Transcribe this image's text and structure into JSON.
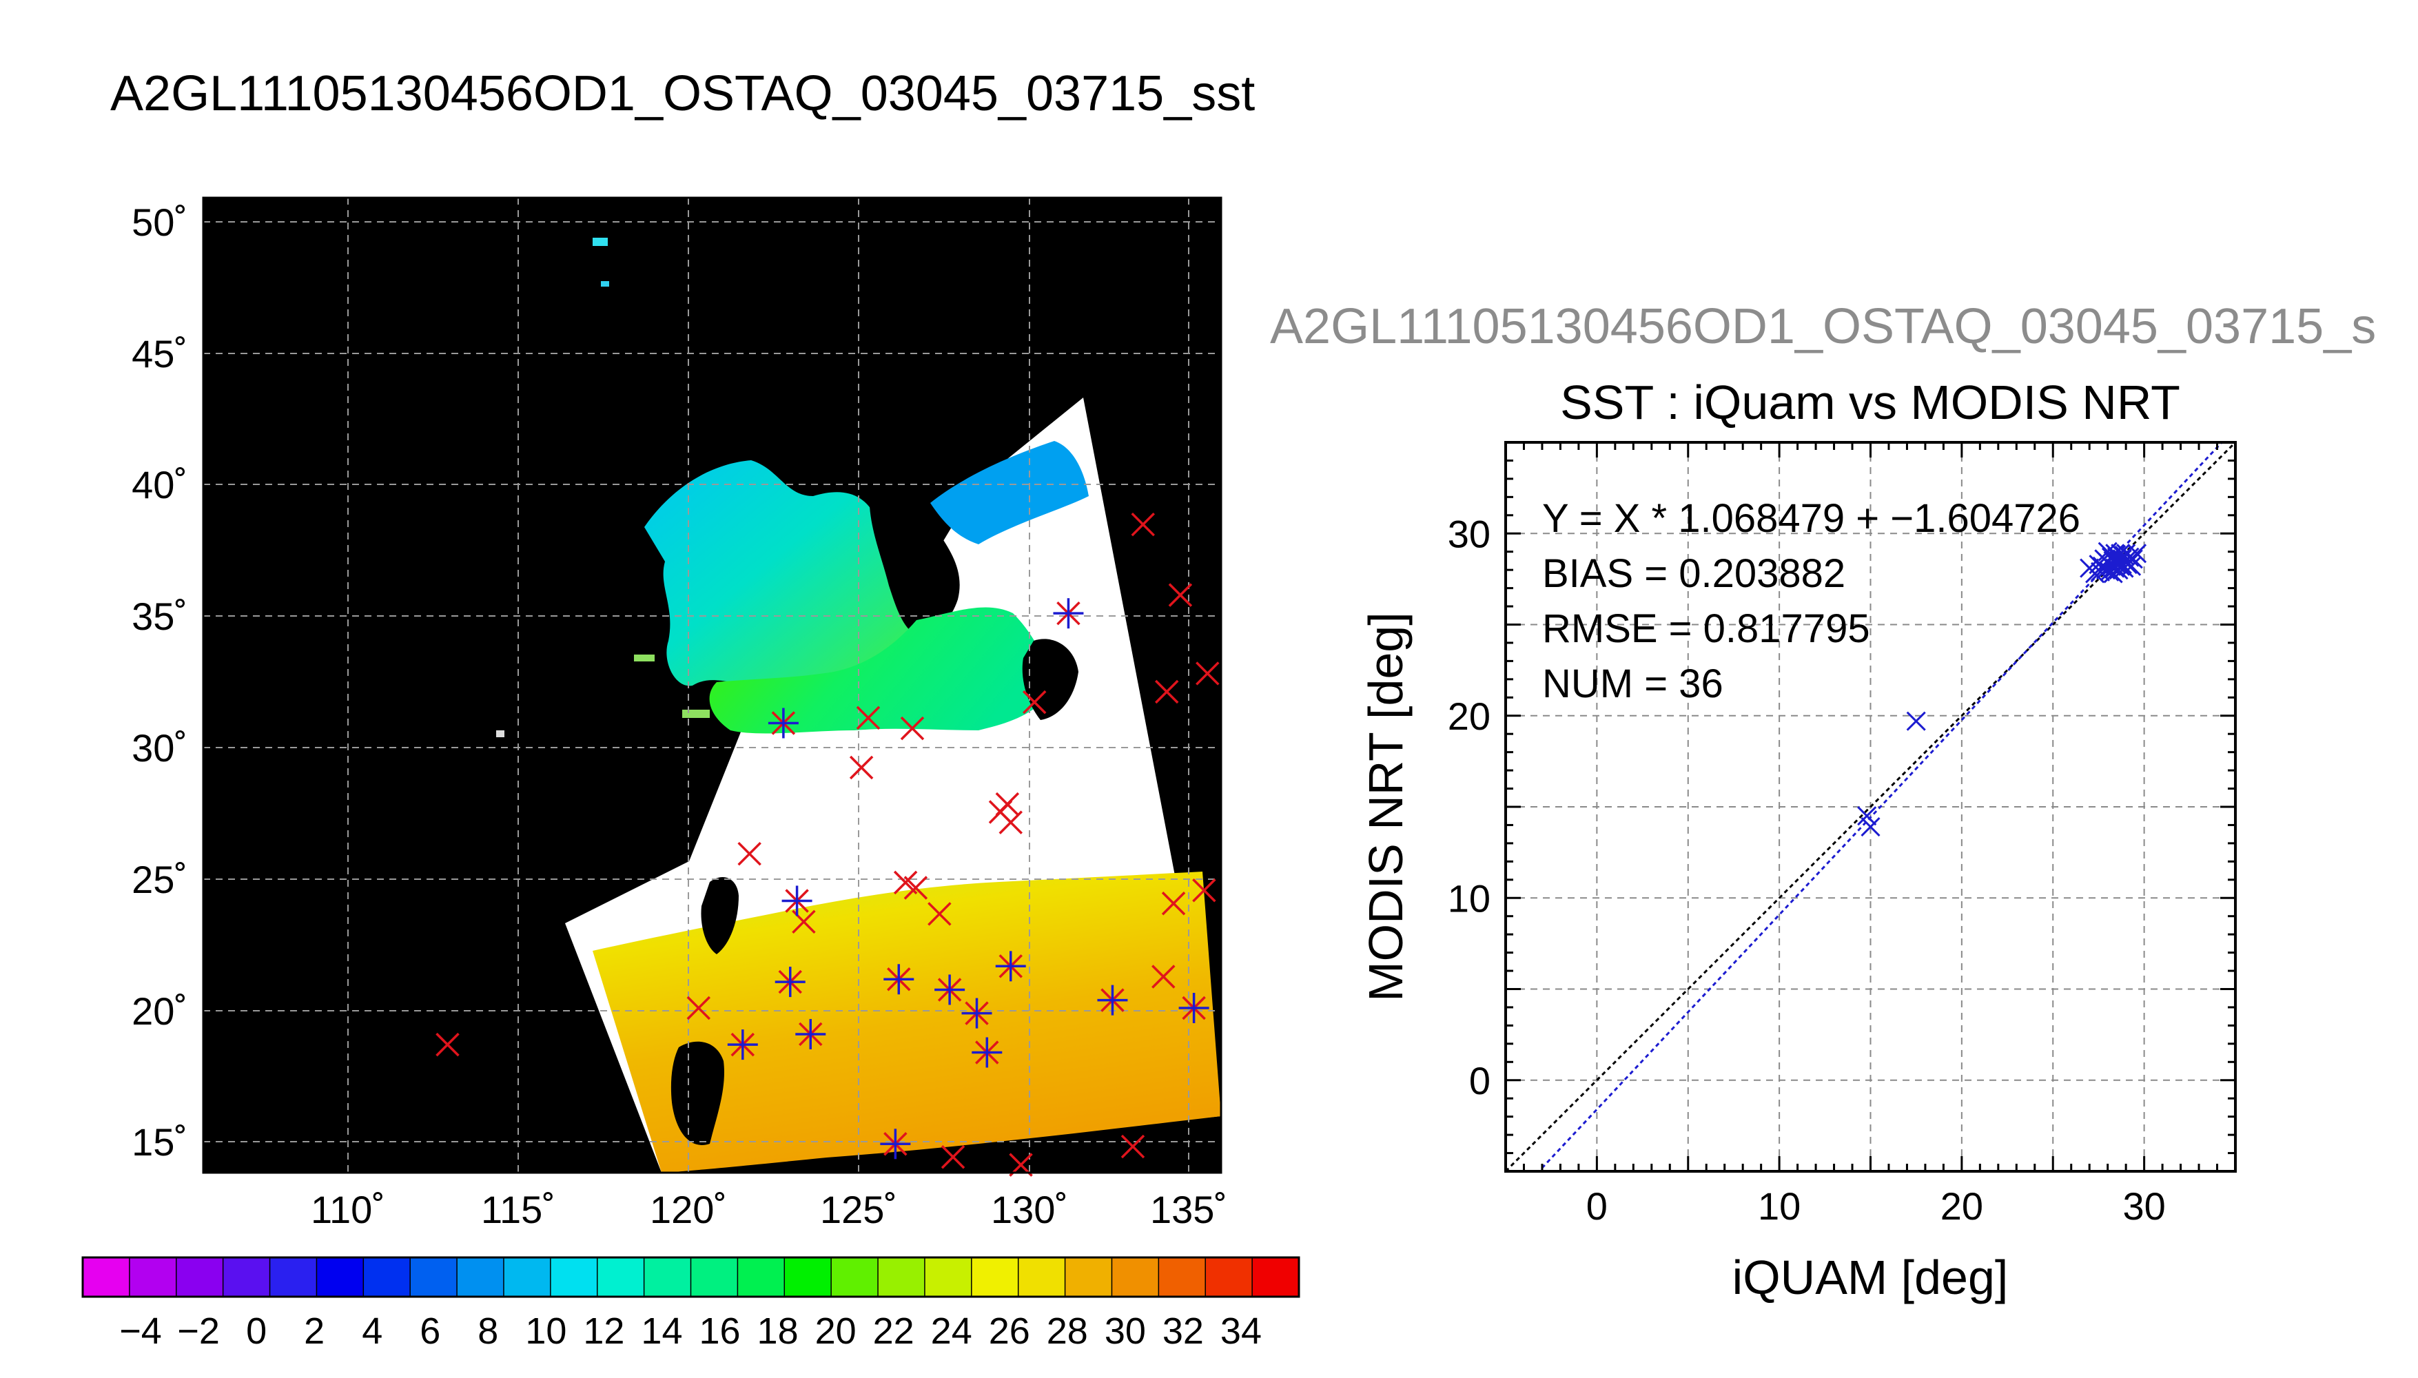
{
  "page": {
    "main_title": "A2GL11105130456OD1_OSTAQ_03045_03715_sst",
    "scatter_header": "A2GL11105130456OD1_OSTAQ_03045_03715_s"
  },
  "map_panel": {
    "lat_ticks": [
      "50˚",
      "45˚",
      "40˚",
      "35˚",
      "30˚",
      "25˚",
      "20˚",
      "15˚"
    ],
    "lon_ticks": [
      "110˚",
      "115˚",
      "120˚",
      "125˚",
      "130˚",
      "135˚"
    ],
    "colors": {
      "background": "#000000",
      "cloud": "#ffffff",
      "grid": "#9a9a9a",
      "marker_red": "#e0141c",
      "marker_blue": "#1c1cd0"
    },
    "colorbar": {
      "tick_labels": [
        "−4",
        "−2",
        "0",
        "2",
        "4",
        "6",
        "8",
        "10",
        "12",
        "14",
        "16",
        "18",
        "20",
        "22",
        "24",
        "26",
        "28",
        "30",
        "32",
        "34"
      ],
      "colors": [
        "#e600f0",
        "#b200f0",
        "#8a00f0",
        "#5a10f0",
        "#2a20f0",
        "#0000f0",
        "#0030f0",
        "#0060f0",
        "#0090f0",
        "#00b8f0",
        "#00e0f0",
        "#00f0d0",
        "#00f0a0",
        "#00f080",
        "#00f050",
        "#00f000",
        "#60f000",
        "#98f000",
        "#c8f000",
        "#f0f000",
        "#f0e000",
        "#f0b000",
        "#f09000",
        "#f06000",
        "#f03000",
        "#f00000"
      ]
    }
  },
  "chart_data": [
    {
      "type": "scatter",
      "title": "",
      "xlabel": "",
      "ylabel": "",
      "xlim": [
        105.5,
        135.5
      ],
      "ylim": [
        13.9,
        51.2
      ],
      "grid": true,
      "series": [
        {
          "marker": "x",
          "color": "#e0141c",
          "points": [
            [
              112.7,
              18.8
            ],
            [
              120.1,
              20.2
            ],
            [
              121.4,
              18.8
            ],
            [
              121.6,
              26.1
            ],
            [
              122.6,
              31.1
            ],
            [
              122.8,
              21.2
            ],
            [
              123.0,
              24.3
            ],
            [
              123.2,
              23.5
            ],
            [
              123.4,
              19.2
            ],
            [
              124.9,
              29.4
            ],
            [
              125.1,
              31.3
            ],
            [
              125.9,
              15.0
            ],
            [
              126.0,
              21.3
            ],
            [
              126.2,
              25.0
            ],
            [
              126.4,
              30.9
            ],
            [
              126.5,
              24.8
            ],
            [
              127.2,
              23.8
            ],
            [
              127.5,
              20.9
            ],
            [
              127.6,
              14.5
            ],
            [
              128.3,
              20.0
            ],
            [
              128.6,
              18.5
            ],
            [
              129.0,
              27.7
            ],
            [
              129.2,
              28.0
            ],
            [
              129.3,
              27.3
            ],
            [
              129.3,
              21.8
            ],
            [
              129.6,
              14.2
            ],
            [
              130.0,
              31.9
            ],
            [
              131.0,
              35.3
            ],
            [
              132.3,
              20.5
            ],
            [
              132.9,
              14.9
            ],
            [
              133.2,
              38.7
            ],
            [
              133.8,
              21.4
            ],
            [
              133.9,
              32.3
            ],
            [
              134.1,
              24.2
            ],
            [
              134.3,
              36.0
            ],
            [
              134.7,
              20.2
            ],
            [
              135.0,
              24.7
            ],
            [
              135.1,
              33.0
            ]
          ]
        },
        {
          "marker": "+",
          "color": "#1c1cd0",
          "points": [
            [
              121.4,
              18.8
            ],
            [
              122.6,
              31.1
            ],
            [
              122.8,
              21.2
            ],
            [
              123.0,
              24.3
            ],
            [
              123.4,
              19.2
            ],
            [
              125.9,
              15.0
            ],
            [
              126.0,
              21.3
            ],
            [
              127.5,
              20.9
            ],
            [
              128.3,
              20.0
            ],
            [
              128.6,
              18.5
            ],
            [
              129.3,
              21.8
            ],
            [
              131.0,
              35.3
            ],
            [
              132.3,
              20.5
            ],
            [
              134.7,
              20.2
            ]
          ]
        }
      ]
    },
    {
      "type": "scatter",
      "title": "SST : iQuam vs MODIS NRT",
      "xlabel": "iQUAM [deg]",
      "ylabel": "MODIS NRT [deg]",
      "xlim": [
        -5,
        35
      ],
      "ylim": [
        -5,
        35
      ],
      "x_ticks": [
        0,
        10,
        20,
        30
      ],
      "y_ticks": [
        0,
        10,
        20,
        30
      ],
      "grid": true,
      "annotations": [
        "Y = X * 1.068479 + −1.604726",
        "BIAS = 0.203882",
        "RMSE = 0.817795",
        "NUM = 36"
      ],
      "fit_line": {
        "slope": 1.068479,
        "intercept": -1.604726,
        "color": "#1c1cd0"
      },
      "identity_line": {
        "color": "#000000"
      },
      "series": [
        {
          "marker": "x",
          "color": "#1c1cd0",
          "points": [
            [
              14.8,
              14.5
            ],
            [
              15.0,
              13.9
            ],
            [
              17.5,
              19.7
            ],
            [
              27.0,
              28.1
            ],
            [
              27.3,
              27.8
            ],
            [
              27.5,
              28.3
            ],
            [
              27.6,
              27.9
            ],
            [
              27.7,
              28.2
            ],
            [
              27.8,
              28.6
            ],
            [
              27.9,
              28.0
            ],
            [
              28.0,
              28.4
            ],
            [
              28.0,
              29.0
            ],
            [
              28.1,
              27.9
            ],
            [
              28.2,
              28.7
            ],
            [
              28.2,
              28.2
            ],
            [
              28.3,
              28.5
            ],
            [
              28.3,
              27.8
            ],
            [
              28.4,
              28.9
            ],
            [
              28.4,
              28.1
            ],
            [
              28.5,
              28.3
            ],
            [
              28.5,
              28.7
            ],
            [
              28.6,
              28.0
            ],
            [
              28.6,
              28.5
            ],
            [
              28.7,
              28.9
            ],
            [
              28.7,
              28.2
            ],
            [
              28.8,
              28.6
            ],
            [
              28.8,
              28.3
            ],
            [
              28.9,
              28.8
            ],
            [
              28.9,
              28.1
            ],
            [
              29.0,
              28.5
            ],
            [
              29.0,
              28.9
            ],
            [
              29.1,
              28.3
            ],
            [
              29.2,
              28.7
            ],
            [
              29.3,
              28.2
            ],
            [
              29.4,
              28.6
            ],
            [
              29.6,
              28.9
            ]
          ]
        }
      ]
    }
  ]
}
